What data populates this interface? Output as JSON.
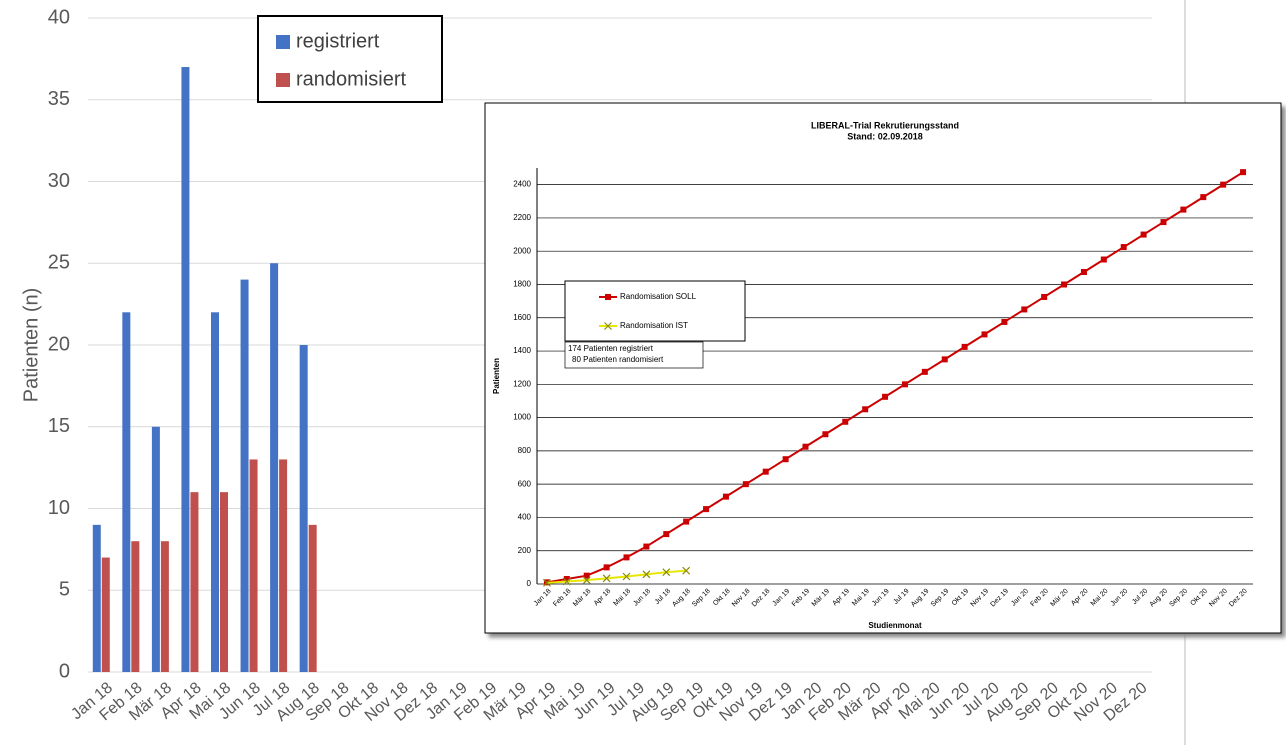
{
  "chart_data": [
    {
      "type": "bar",
      "ylabel": "Patienten (n)",
      "categories": [
        "Jan 18",
        "Feb 18",
        "Mär 18",
        "Apr 18",
        "Mai 18",
        "Jun 18",
        "Jul 18",
        "Aug 18",
        "Sep 18",
        "Okt 18",
        "Nov 18",
        "Dez 18",
        "Jan 19",
        "Feb 19",
        "Mär 19",
        "Apr 19",
        "Mai 19",
        "Jun 19",
        "Jul 19",
        "Aug 19",
        "Sep 19",
        "Okt 19",
        "Nov 19",
        "Dez 19",
        "Jan 20",
        "Feb 20",
        "Mär 20",
        "Apr 20",
        "Mai 20",
        "Jun 20",
        "Jul 20",
        "Aug 20",
        "Sep 20",
        "Okt 20",
        "Nov 20",
        "Dez 20"
      ],
      "series": [
        {
          "name": "registriert",
          "color": "#4472c4",
          "values": [
            9,
            22,
            15,
            37,
            22,
            24,
            25,
            20,
            null,
            null,
            null,
            null,
            null,
            null,
            null,
            null,
            null,
            null,
            null,
            null,
            null,
            null,
            null,
            null,
            null,
            null,
            null,
            null,
            null,
            null,
            null,
            null,
            null,
            null,
            null,
            null
          ]
        },
        {
          "name": "randomisiert",
          "color": "#c0504d",
          "values": [
            7,
            8,
            8,
            11,
            11,
            13,
            13,
            9,
            null,
            null,
            null,
            null,
            null,
            null,
            null,
            null,
            null,
            null,
            null,
            null,
            null,
            null,
            null,
            null,
            null,
            null,
            null,
            null,
            null,
            null,
            null,
            null,
            null,
            null,
            null,
            null
          ]
        }
      ],
      "ylim": [
        0,
        40
      ],
      "yticks": [
        0,
        5,
        10,
        15,
        20,
        25,
        30,
        35,
        40
      ],
      "grid": true,
      "legend": "top"
    },
    {
      "type": "line",
      "title": "LIBERAL-Trial Rekrutierungsstand",
      "subtitle": "Stand: 02.09.2018",
      "xlabel": "Studienmonat",
      "ylabel": "Patienten",
      "annotations": [
        "174 Patienten registriert",
        "80 Patienten randomisiert"
      ],
      "categories": [
        "Jan 18",
        "Feb 18",
        "Mär 18",
        "Apr 18",
        "Mai 18",
        "Jun 18",
        "Jul 18",
        "Aug 18",
        "Sep 18",
        "Okt 18",
        "Nov 18",
        "Dez 18",
        "Jan 19",
        "Feb 19",
        "Mär 19",
        "Apr 19",
        "Mai 19",
        "Jun 19",
        "Jul 19",
        "Aug 19",
        "Sep 19",
        "Okt 19",
        "Nov 19",
        "Dez 19",
        "Jan 20",
        "Feb 20",
        "Mär 20",
        "Apr 20",
        "Mai 20",
        "Jun 20",
        "Jul 20",
        "Aug 20",
        "Sep 20",
        "Okt 20",
        "Nov 20",
        "Dez 20"
      ],
      "series": [
        {
          "name": "Randomisation SOLL",
          "color": "#cc0000",
          "marker": "square",
          "values": [
            10,
            30,
            50,
            100,
            160,
            225,
            300,
            375,
            450,
            525,
            600,
            675,
            750,
            825,
            900,
            975,
            1050,
            1125,
            1200,
            1275,
            1350,
            1425,
            1500,
            1575,
            1650,
            1725,
            1800,
            1875,
            1950,
            2025,
            2100,
            2175,
            2250,
            2325,
            2400,
            2475
          ]
        },
        {
          "name": "Randomisation IST",
          "color": "#e6e600",
          "marker": "x",
          "values": [
            7,
            15,
            23,
            34,
            45,
            58,
            71,
            80,
            null,
            null,
            null,
            null,
            null,
            null,
            null,
            null,
            null,
            null,
            null,
            null,
            null,
            null,
            null,
            null,
            null,
            null,
            null,
            null,
            null,
            null,
            null,
            null,
            null,
            null,
            null,
            null
          ]
        }
      ],
      "ylim": [
        0,
        2500
      ],
      "yticks": [
        0,
        200,
        400,
        600,
        800,
        1000,
        1200,
        1400,
        1600,
        1800,
        2000,
        2200,
        2400
      ],
      "grid": true,
      "legend": "left"
    }
  ]
}
